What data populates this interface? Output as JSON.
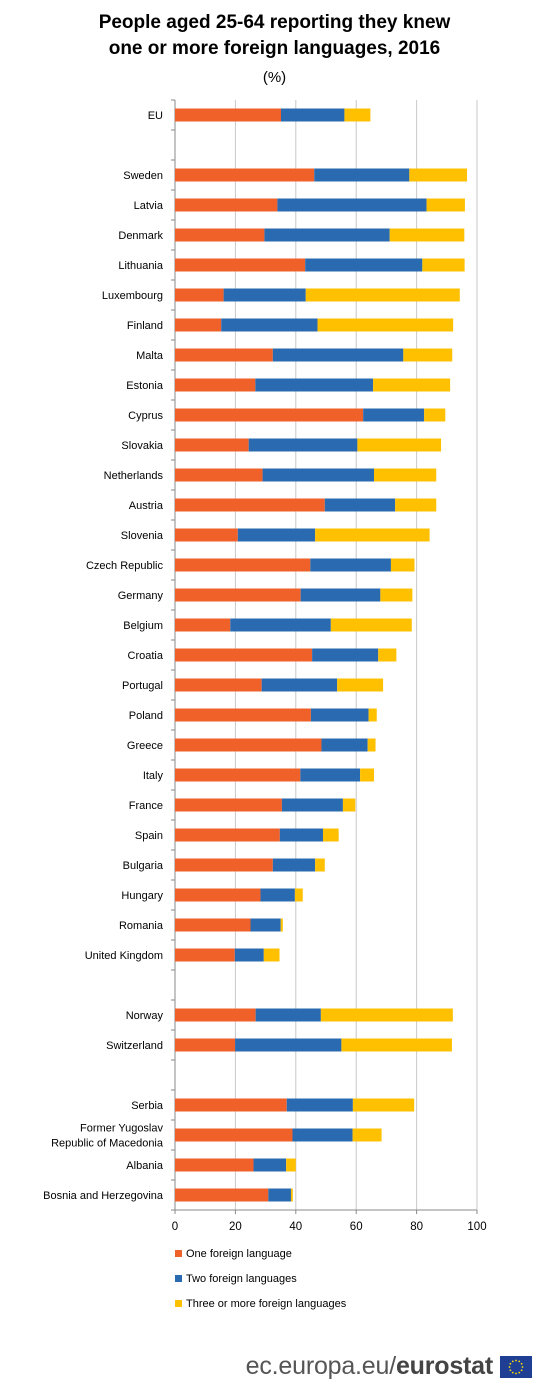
{
  "title_line1": "People aged 25-64 reporting they knew",
  "title_line2": "one or more foreign languages, 2016",
  "unit": "(%)",
  "footer": {
    "site": "ec.europa.eu/",
    "brand": "eurostat",
    "logo": "eu-flag-icon"
  },
  "colors": {
    "one": "#f0612a",
    "two": "#2a6ab0",
    "three": "#ffc000",
    "grid": "#c8c8c8",
    "axis": "#888888"
  },
  "chart_data": {
    "type": "bar",
    "orientation": "horizontal",
    "stacked": true,
    "categories": [
      "EU",
      "Sweden",
      "Latvia",
      "Denmark",
      "Lithuania",
      "Luxembourg",
      "Finland",
      "Malta",
      "Estonia",
      "Cyprus",
      "Slovakia",
      "Netherlands",
      "Austria",
      "Slovenia",
      "Czech Republic",
      "Germany",
      "Belgium",
      "Croatia",
      "Portugal",
      "Poland",
      "Greece",
      "Italy",
      "France",
      "Spain",
      "Bulgaria",
      "Hungary",
      "Romania",
      "United Kingdom",
      "Norway",
      "Switzerland",
      "Serbia",
      "Former Yugoslav Republic of Macedonia",
      "Albania",
      "Bosnia and Herzegovina"
    ],
    "category_lines": [
      [
        "EU"
      ],
      [
        "Sweden"
      ],
      [
        "Latvia"
      ],
      [
        "Denmark"
      ],
      [
        "Lithuania"
      ],
      [
        "Luxembourg"
      ],
      [
        "Finland"
      ],
      [
        "Malta"
      ],
      [
        "Estonia"
      ],
      [
        "Cyprus"
      ],
      [
        "Slovakia"
      ],
      [
        "Netherlands"
      ],
      [
        "Austria"
      ],
      [
        "Slovenia"
      ],
      [
        "Czech Republic"
      ],
      [
        "Germany"
      ],
      [
        "Belgium"
      ],
      [
        "Croatia"
      ],
      [
        "Portugal"
      ],
      [
        "Poland"
      ],
      [
        "Greece"
      ],
      [
        "Italy"
      ],
      [
        "France"
      ],
      [
        "Spain"
      ],
      [
        "Bulgaria"
      ],
      [
        "Hungary"
      ],
      [
        "Romania"
      ],
      [
        "United Kingdom"
      ],
      [
        "Norway"
      ],
      [
        "Switzerland"
      ],
      [
        "Serbia"
      ],
      [
        "Former Yugoslav",
        "Republic of Macedonia"
      ],
      [
        "Albania"
      ],
      [
        "Bosnia and Herzegovina"
      ]
    ],
    "group_breaks_after": [
      "EU",
      "United Kingdom",
      "Switzerland"
    ],
    "series": [
      {
        "name": "One foreign language",
        "values": [
          35.1,
          46.1,
          33.9,
          29.6,
          43.1,
          16.1,
          15.3,
          32.4,
          26.6,
          62.3,
          24.4,
          29.0,
          49.6,
          20.8,
          44.8,
          41.6,
          18.3,
          45.4,
          28.7,
          45.0,
          48.5,
          41.5,
          35.4,
          34.7,
          32.4,
          28.3,
          25.0,
          19.8,
          26.7,
          19.9,
          37.0,
          38.9,
          26.0,
          30.9
        ]
      },
      {
        "name": "Two foreign languages",
        "values": [
          21.0,
          31.5,
          49.4,
          41.5,
          38.8,
          27.2,
          31.9,
          43.2,
          39.0,
          20.2,
          36.0,
          36.9,
          23.3,
          25.6,
          26.7,
          26.4,
          33.3,
          21.9,
          25.0,
          19.1,
          15.3,
          19.8,
          20.2,
          14.3,
          14.0,
          11.4,
          10.0,
          9.6,
          21.6,
          35.2,
          21.9,
          19.9,
          10.8,
          7.5
        ]
      },
      {
        "name": "Three or more foreign languages",
        "values": [
          8.6,
          19.1,
          12.7,
          24.7,
          14.0,
          51.0,
          44.9,
          16.2,
          25.5,
          7.0,
          27.7,
          20.6,
          13.6,
          37.9,
          7.8,
          10.6,
          26.8,
          6.0,
          15.2,
          2.7,
          2.6,
          4.6,
          4.1,
          5.2,
          3.2,
          2.6,
          0.7,
          5.2,
          43.7,
          36.6,
          20.3,
          9.6,
          3.2,
          0.6
        ]
      }
    ],
    "xlim": [
      0,
      100
    ],
    "xticks": [
      0,
      20,
      40,
      60,
      80,
      100
    ],
    "xlabel": "",
    "ylabel": "",
    "grid": true,
    "legend": "bottom"
  }
}
